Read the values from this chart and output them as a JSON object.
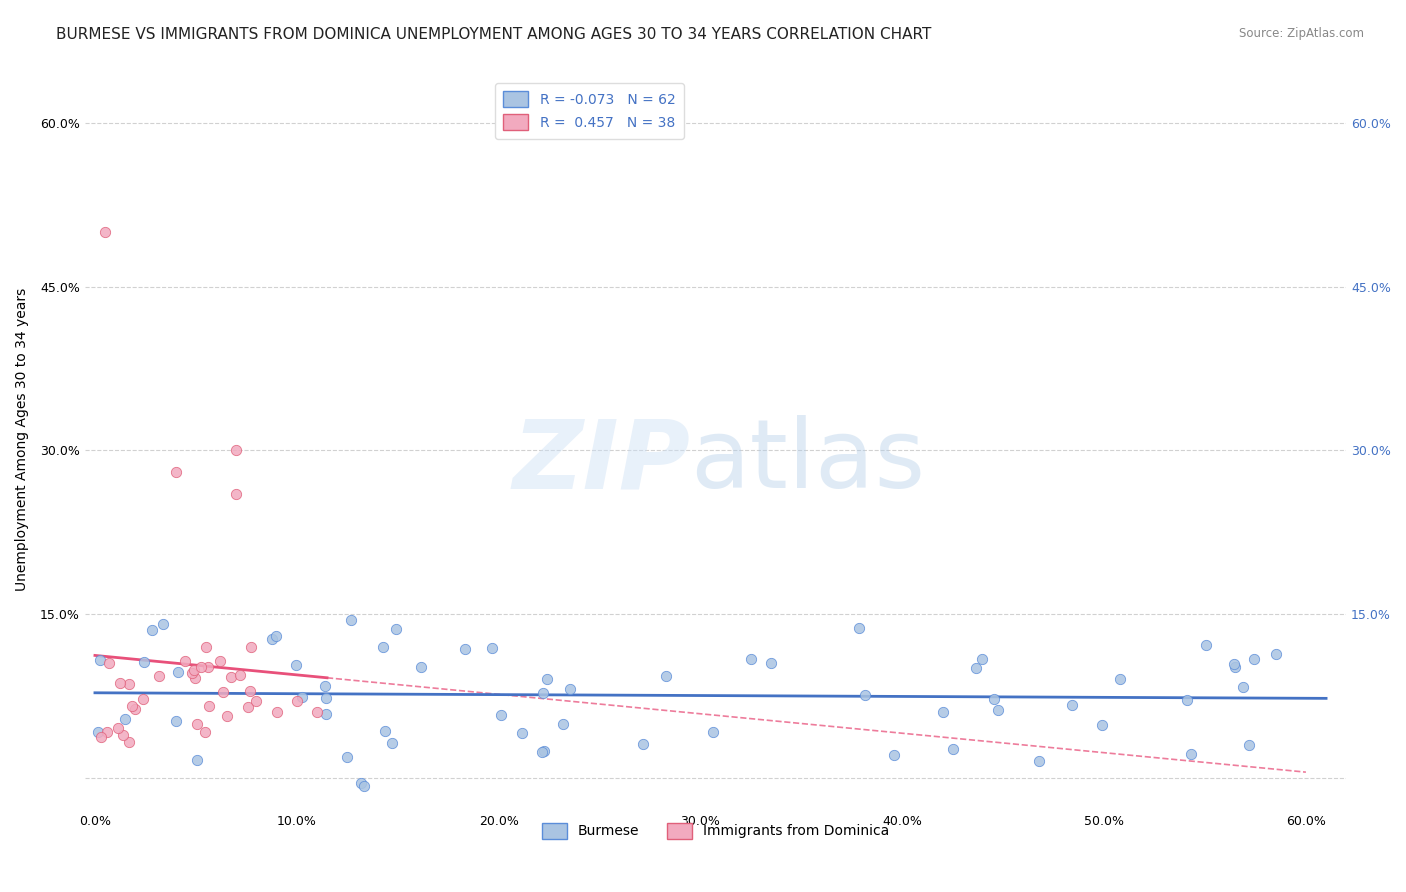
{
  "title": "BURMESE VS IMMIGRANTS FROM DOMINICA UNEMPLOYMENT AMONG AGES 30 TO 34 YEARS CORRELATION CHART",
  "source": "Source: ZipAtlas.com",
  "ylabel": "Unemployment Among Ages 30 to 34 years",
  "xlim": [
    -0.005,
    0.62
  ],
  "ylim": [
    -0.03,
    0.65
  ],
  "xticks": [
    0.0,
    0.1,
    0.2,
    0.3,
    0.4,
    0.5,
    0.6
  ],
  "xticklabels": [
    "0.0%",
    "10.0%",
    "20.0%",
    "30.0%",
    "40.0%",
    "50.0%",
    "60.0%"
  ],
  "yticks": [
    0.0,
    0.15,
    0.3,
    0.45,
    0.6
  ],
  "yticklabels_left": [
    "",
    "15.0%",
    "30.0%",
    "45.0%",
    "60.0%"
  ],
  "yticklabels_right": [
    "",
    "15.0%",
    "30.0%",
    "45.0%",
    "60.0%"
  ],
  "legend_R1": "-0.073",
  "legend_N1": "62",
  "legend_R2": "0.457",
  "legend_N2": "38",
  "color_blue": "#aac4e2",
  "color_pink": "#f2aabf",
  "color_blue_edge": "#5b8dd9",
  "color_pink_edge": "#e0607a",
  "color_trendline_blue": "#4472c4",
  "color_trendline_pink": "#e8507a",
  "color_dashed": "#e8507a",
  "color_grid": "#cccccc",
  "background_color": "#ffffff",
  "title_fontsize": 11,
  "axis_label_fontsize": 10,
  "tick_fontsize": 9,
  "seed": 99
}
